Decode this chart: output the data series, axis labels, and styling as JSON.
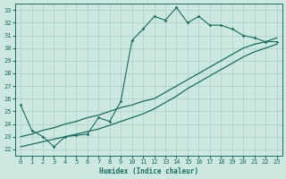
{
  "xlabel": "Humidex (Indice chaleur)",
  "xlim": [
    -0.5,
    23.5
  ],
  "ylim": [
    21.5,
    33.5
  ],
  "xticks": [
    0,
    1,
    2,
    3,
    4,
    5,
    6,
    7,
    8,
    9,
    10,
    11,
    12,
    13,
    14,
    15,
    16,
    17,
    18,
    19,
    20,
    21,
    22,
    23
  ],
  "yticks": [
    22,
    23,
    24,
    25,
    26,
    27,
    28,
    29,
    30,
    31,
    32,
    33
  ],
  "bg_color": "#cce8e0",
  "grid_color": "#aacfc8",
  "line_color": "#1a6b60",
  "line1_x": [
    0,
    1,
    2,
    3,
    4,
    5,
    6,
    7,
    8,
    9,
    10,
    11,
    12,
    13,
    14,
    15,
    16,
    17,
    18,
    19,
    20,
    21,
    22,
    23
  ],
  "line1_y": [
    25.5,
    23.5,
    23.0,
    22.2,
    23.0,
    23.1,
    23.2,
    24.5,
    24.2,
    25.8,
    30.6,
    31.5,
    32.5,
    32.2,
    33.2,
    32.0,
    32.5,
    31.8,
    31.8,
    31.5,
    31.0,
    30.8,
    30.5,
    30.5
  ],
  "line2_x": [
    0,
    1,
    2,
    3,
    4,
    5,
    6,
    7,
    8,
    9,
    10,
    11,
    12,
    13,
    14,
    15,
    16,
    17,
    18,
    19,
    20,
    21,
    22,
    23
  ],
  "line2_y": [
    23.0,
    23.2,
    23.5,
    23.7,
    24.0,
    24.2,
    24.5,
    24.7,
    25.0,
    25.3,
    25.5,
    25.8,
    26.0,
    26.5,
    27.0,
    27.5,
    28.0,
    28.5,
    29.0,
    29.5,
    30.0,
    30.3,
    30.5,
    30.8
  ],
  "line3_x": [
    0,
    1,
    2,
    3,
    4,
    5,
    6,
    7,
    8,
    9,
    10,
    11,
    12,
    13,
    14,
    15,
    16,
    17,
    18,
    19,
    20,
    21,
    22,
    23
  ],
  "line3_y": [
    22.2,
    22.4,
    22.6,
    22.8,
    23.0,
    23.2,
    23.4,
    23.6,
    23.9,
    24.2,
    24.5,
    24.8,
    25.2,
    25.7,
    26.2,
    26.8,
    27.3,
    27.8,
    28.3,
    28.8,
    29.3,
    29.7,
    30.0,
    30.3
  ]
}
